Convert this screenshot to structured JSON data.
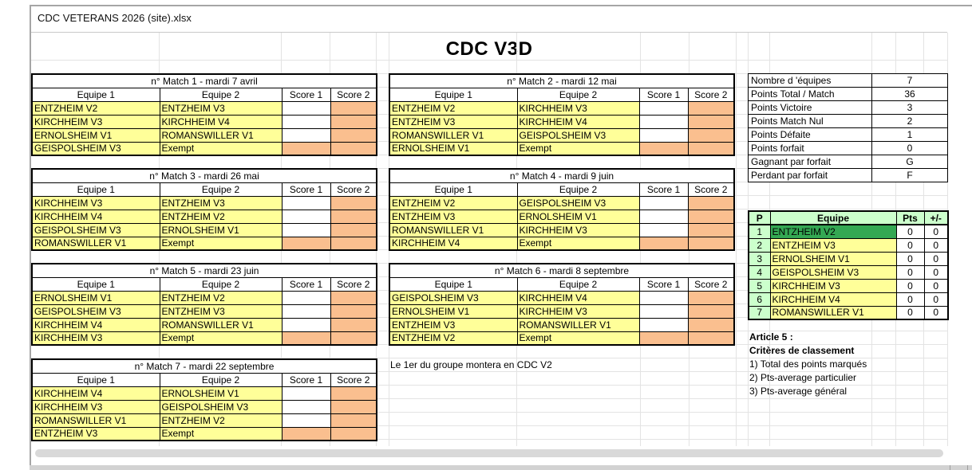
{
  "window": {
    "title": "CDC VETERANS 2026 (site).xlsx"
  },
  "sheet": {
    "title": "CDC V3D"
  },
  "match_table_headers": [
    "Equipe 1",
    "Equipe 2",
    "Score 1",
    "Score 2"
  ],
  "exempt_label": "Exempt",
  "match_tables": [
    {
      "title": "n° Match 1 - mardi 7 avril",
      "rows": [
        [
          "ENTZHEIM V2",
          "ENTZHEIM V3"
        ],
        [
          "KIRCHHEIM V3",
          "KIRCHHEIM V4"
        ],
        [
          "ERNOLSHEIM V1",
          "ROMANSWILLER V1"
        ],
        [
          "GEISPOLSHEIM V3",
          "Exempt"
        ]
      ]
    },
    {
      "title": "n° Match 2 - mardi 12 mai",
      "rows": [
        [
          "ENTZHEIM V2",
          "KIRCHHEIM V3"
        ],
        [
          "ENTZHEIM V3",
          "KIRCHHEIM V4"
        ],
        [
          "ROMANSWILLER V1",
          "GEISPOLSHEIM V3"
        ],
        [
          "ERNOLSHEIM V1",
          "Exempt"
        ]
      ]
    },
    {
      "title": "n° Match 3 - mardi 26 mai",
      "rows": [
        [
          "KIRCHHEIM V3",
          "ENTZHEIM V3"
        ],
        [
          "KIRCHHEIM V4",
          "ENTZHEIM V2"
        ],
        [
          "GEISPOLSHEIM V3",
          "ERNOLSHEIM V1"
        ],
        [
          "ROMANSWILLER V1",
          "Exempt"
        ]
      ]
    },
    {
      "title": "n° Match 4 - mardi 9 juin",
      "rows": [
        [
          "ENTZHEIM V2",
          "GEISPOLSHEIM V3"
        ],
        [
          "ENTZHEIM V3",
          "ERNOLSHEIM V1"
        ],
        [
          "ROMANSWILLER V1",
          "KIRCHHEIM V3"
        ],
        [
          "KIRCHHEIM V4",
          "Exempt"
        ]
      ]
    },
    {
      "title": "n° Match 5 - mardi 23 juin",
      "rows": [
        [
          "ERNOLSHEIM V1",
          "ENTZHEIM V2"
        ],
        [
          "GEISPOLSHEIM V3",
          "ENTZHEIM V3"
        ],
        [
          "KIRCHHEIM V4",
          "ROMANSWILLER V1"
        ],
        [
          "KIRCHHEIM V3",
          "Exempt"
        ]
      ]
    },
    {
      "title": "n° Match 6 - mardi 8 septembre",
      "rows": [
        [
          "GEISPOLSHEIM V3",
          "KIRCHHEIM V4"
        ],
        [
          "ERNOLSHEIM V1",
          "KIRCHHEIM V3"
        ],
        [
          "ENTZHEIM V3",
          "ROMANSWILLER V1"
        ],
        [
          "ENTZHEIM V2",
          "Exempt"
        ]
      ]
    },
    {
      "title": "n° Match 7 - mardi 22 septembre",
      "rows": [
        [
          "KIRCHHEIM V4",
          "ERNOLSHEIM V1"
        ],
        [
          "KIRCHHEIM V3",
          "GEISPOLSHEIM V3"
        ],
        [
          "ROMANSWILLER V1",
          "ENTZHEIM V2"
        ],
        [
          "ENTZHEIM V3",
          "Exempt"
        ]
      ]
    }
  ],
  "info_table": {
    "rows": [
      [
        "Nombre d 'équipes",
        "7"
      ],
      [
        "Points Total / Match",
        "36"
      ],
      [
        "Points Victoire",
        "3"
      ],
      [
        "Points Match Nul",
        "2"
      ],
      [
        "Points Défaite",
        "1"
      ],
      [
        "Points forfait",
        "0"
      ],
      [
        "Gagnant par forfait",
        "G"
      ],
      [
        "Perdant par forfait",
        "F"
      ]
    ]
  },
  "standings": {
    "headers": [
      "P",
      "Equipe",
      "Pts",
      "+/-"
    ],
    "leader_position": 1,
    "rows": [
      [
        "1",
        "ENTZHEIM V2",
        "0",
        "0"
      ],
      [
        "2",
        "ENTZHEIM V3",
        "0",
        "0"
      ],
      [
        "3",
        "ERNOLSHEIM V1",
        "0",
        "0"
      ],
      [
        "4",
        "GEISPOLSHEIM V3",
        "0",
        "0"
      ],
      [
        "5",
        "KIRCHHEIM V3",
        "0",
        "0"
      ],
      [
        "6",
        "KIRCHHEIM V4",
        "0",
        "0"
      ],
      [
        "7",
        "ROMANSWILLER V1",
        "0",
        "0"
      ]
    ]
  },
  "note": "Le 1er du groupe montera en CDC V2",
  "article5": {
    "title": "Article 5 :",
    "subtitle": "Critères de classement",
    "items": [
      "1) Total des points marqués",
      "2) Pts-average particulier",
      "3) Pts-average général"
    ]
  },
  "colors": {
    "team_yellow": "#FFFF99",
    "score_orange": "#FABF8F",
    "header_light_green": "#CCFFCC",
    "leader_green": "#34A853"
  }
}
